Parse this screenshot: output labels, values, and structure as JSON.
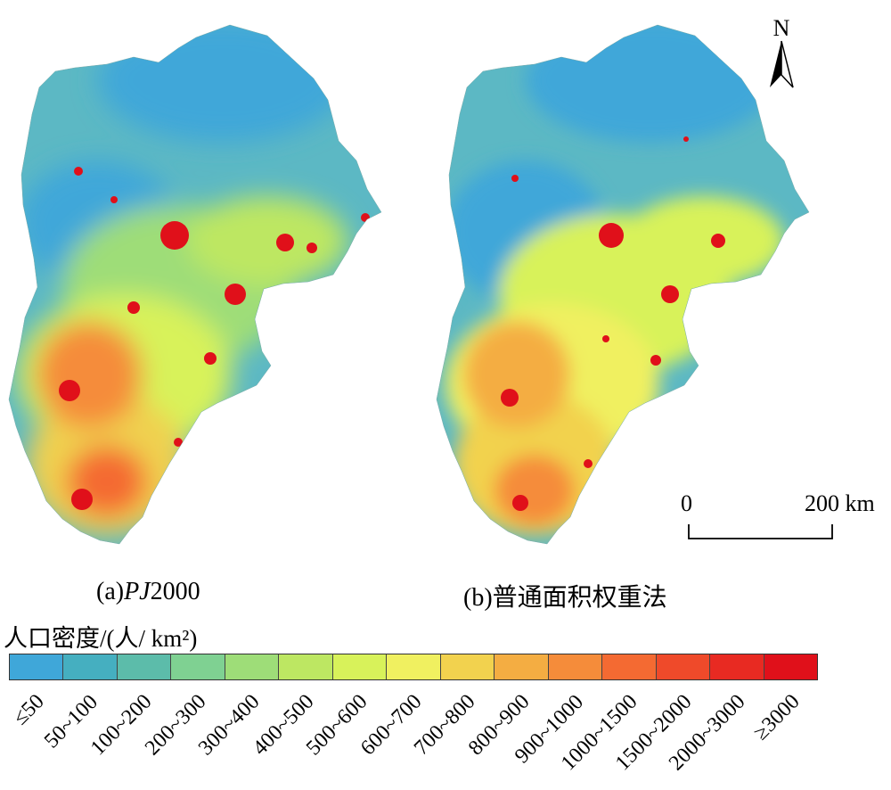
{
  "panels": [
    {
      "prefix": "(a)",
      "italic": "PJ",
      "suffix": "2000"
    },
    {
      "prefix": "(b)",
      "italic": "",
      "suffix": "普通面积权重法"
    }
  ],
  "north_arrow": {
    "label": "N"
  },
  "scale_bar": {
    "start": "0",
    "end": "200 km"
  },
  "legend": {
    "title": "人口密度/(人/ km²)",
    "classes": [
      {
        "label": "≤50",
        "color": "#3fa7d9"
      },
      {
        "label": "50~100",
        "color": "#45afc0"
      },
      {
        "label": "100~200",
        "color": "#5cbcaa"
      },
      {
        "label": "200~300",
        "color": "#7fd192"
      },
      {
        "label": "300~400",
        "color": "#9edd78"
      },
      {
        "label": "400~500",
        "color": "#bde762"
      },
      {
        "label": "500~600",
        "color": "#d8f25a"
      },
      {
        "label": "600~700",
        "color": "#f0f060"
      },
      {
        "label": "700~800",
        "color": "#f2d24e"
      },
      {
        "label": "800~900",
        "color": "#f4ad42"
      },
      {
        "label": "900~1000",
        "color": "#f58c3a"
      },
      {
        "label": "1000~1500",
        "color": "#f46a32"
      },
      {
        "label": "1500~2000",
        "color": "#ef4a2a"
      },
      {
        "label": "2000~3000",
        "color": "#e82a22"
      },
      {
        "label": "≥3000",
        "color": "#e0101a"
      }
    ]
  }
}
